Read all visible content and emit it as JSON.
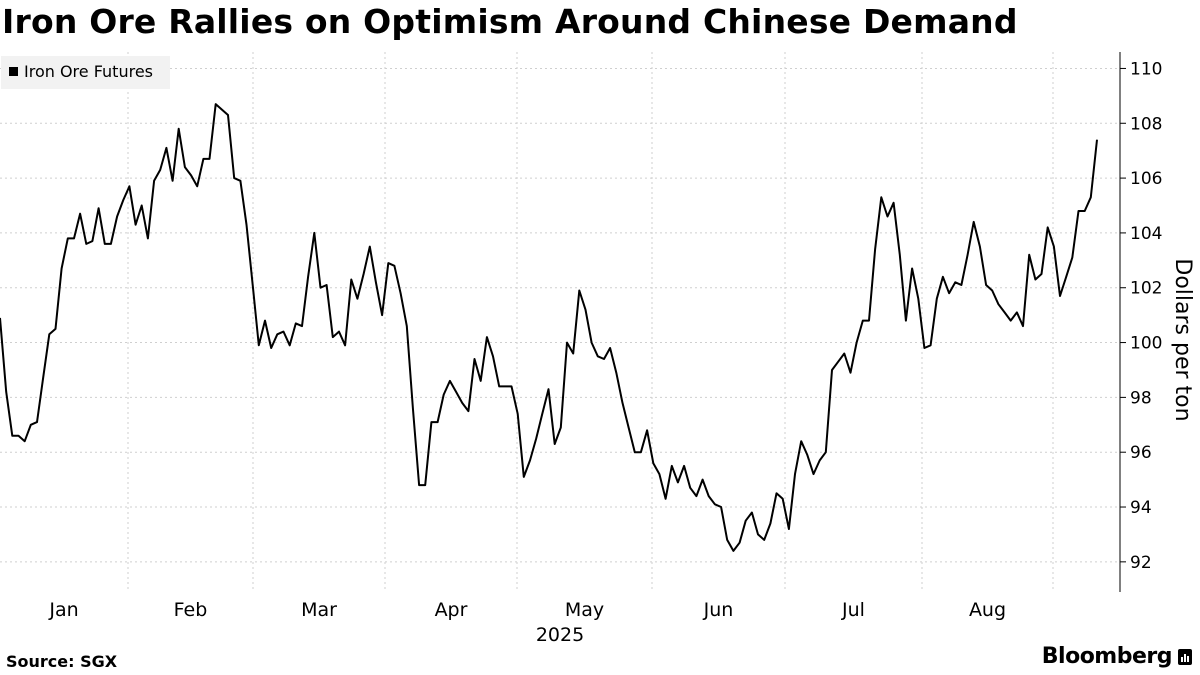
{
  "title": "Iron Ore Rallies on Optimism Around Chinese Demand",
  "footer": {
    "source": "Source: SGX",
    "brand": "Bloomberg"
  },
  "chart_data": {
    "type": "line",
    "title": "Iron Ore Rallies on Optimism Around Chinese Demand",
    "ylabel": "Dollars per ton",
    "xlabel": "2025",
    "ylim": [
      90.9,
      110.6
    ],
    "yticks": [
      92,
      94,
      96,
      98,
      100,
      102,
      104,
      106,
      108,
      110
    ],
    "axis_position": "right",
    "grid": "horizontal-dotted",
    "legend": {
      "position": "top-left",
      "entries": [
        "Iron Ore Futures"
      ]
    },
    "months": [
      "Jan",
      "Feb",
      "Mar",
      "Apr",
      "May",
      "Jun",
      "Jul",
      "Aug"
    ],
    "year_label": "2025",
    "line_color": "#000000",
    "series": [
      {
        "name": "Iron Ore Futures",
        "values": [
          100.9,
          98.2,
          96.6,
          96.6,
          96.4,
          97.0,
          97.1,
          98.7,
          100.3,
          100.5,
          102.7,
          103.8,
          103.8,
          104.7,
          103.6,
          103.7,
          104.9,
          103.6,
          103.6,
          104.6,
          105.2,
          105.7,
          104.3,
          105.0,
          103.8,
          105.9,
          106.3,
          107.1,
          105.9,
          107.8,
          106.4,
          106.1,
          105.7,
          106.7,
          106.7,
          108.7,
          108.5,
          108.3,
          106.0,
          105.9,
          104.3,
          102.1,
          99.9,
          100.8,
          99.8,
          100.3,
          100.4,
          99.9,
          100.7,
          100.6,
          102.4,
          104.0,
          102.0,
          102.1,
          100.2,
          100.4,
          99.9,
          102.3,
          101.6,
          102.5,
          103.5,
          102.2,
          101.0,
          102.9,
          102.8,
          101.8,
          100.6,
          97.6,
          94.8,
          94.8,
          97.1,
          97.1,
          98.1,
          98.6,
          98.2,
          97.8,
          97.5,
          99.4,
          98.6,
          100.2,
          99.5,
          98.4,
          98.4,
          98.4,
          97.4,
          95.1,
          95.7,
          96.5,
          97.4,
          98.3,
          96.3,
          96.9,
          100.0,
          99.6,
          101.9,
          101.2,
          100.0,
          99.5,
          99.4,
          99.8,
          98.9,
          97.8,
          96.9,
          96.0,
          96.0,
          96.8,
          95.6,
          95.2,
          94.3,
          95.5,
          94.9,
          95.5,
          94.7,
          94.4,
          95.0,
          94.4,
          94.1,
          94.0,
          92.8,
          92.4,
          92.7,
          93.5,
          93.8,
          93.0,
          92.8,
          93.4,
          94.5,
          94.3,
          93.2,
          95.2,
          96.4,
          95.9,
          95.2,
          95.7,
          96.0,
          99.0,
          99.3,
          99.6,
          98.9,
          100.0,
          100.8,
          100.8,
          103.4,
          105.3,
          104.6,
          105.1,
          103.2,
          100.8,
          102.7,
          101.6,
          99.8,
          99.9,
          101.6,
          102.4,
          101.8,
          102.2,
          102.1,
          103.2,
          104.4,
          103.5,
          102.1,
          101.9,
          101.4,
          101.1,
          100.8,
          101.1,
          100.6,
          103.2,
          102.3,
          102.5,
          104.2,
          103.5,
          101.7,
          102.4,
          103.1,
          104.8,
          104.8,
          105.3,
          107.4
        ]
      }
    ]
  }
}
